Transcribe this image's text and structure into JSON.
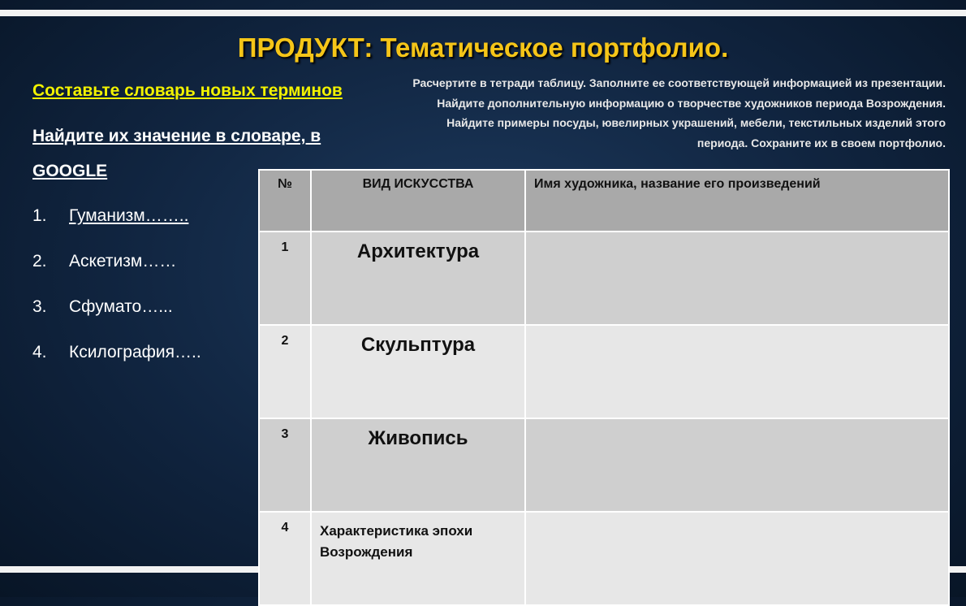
{
  "slide": {
    "title": "ПРОДУКТ: Тематическое портфолио.",
    "task_heading": "Составьте словарь новых терминов",
    "find_heading": [
      "Найдите их значение в словаре, в",
      "GOOGLE"
    ],
    "terms": [
      {
        "number": "1.",
        "text": "Гуманизм…….."
      },
      {
        "number": "2.",
        "text": "Аскетизм……"
      },
      {
        "number": "3.",
        "text": "Сфумато…..."
      },
      {
        "number": "4.",
        "text": "Ксилография….."
      }
    ],
    "instructions": [
      "Расчертите в тетради  таблицу. Заполните ее соответствующей информацией из презентации.",
      "Найдите дополнительную информацию о творчестве художников периода Возрождения. Найдите примеры посуды, ювелирных украшений, мебели, текстильных изделий  этого периода. Сохраните их в своем портфолио."
    ]
  },
  "table": {
    "header": [
      "№",
      "ВИД ИСКУССТВА",
      "Имя художника, название его произведений"
    ],
    "rows": [
      [
        "1",
        "Архитектура"
      ],
      [
        "2",
        "Скульптура"
      ],
      [
        "3",
        "Живопись"
      ],
      [
        "4",
        "Характеристика эпохи Возрождения"
      ]
    ]
  }
}
